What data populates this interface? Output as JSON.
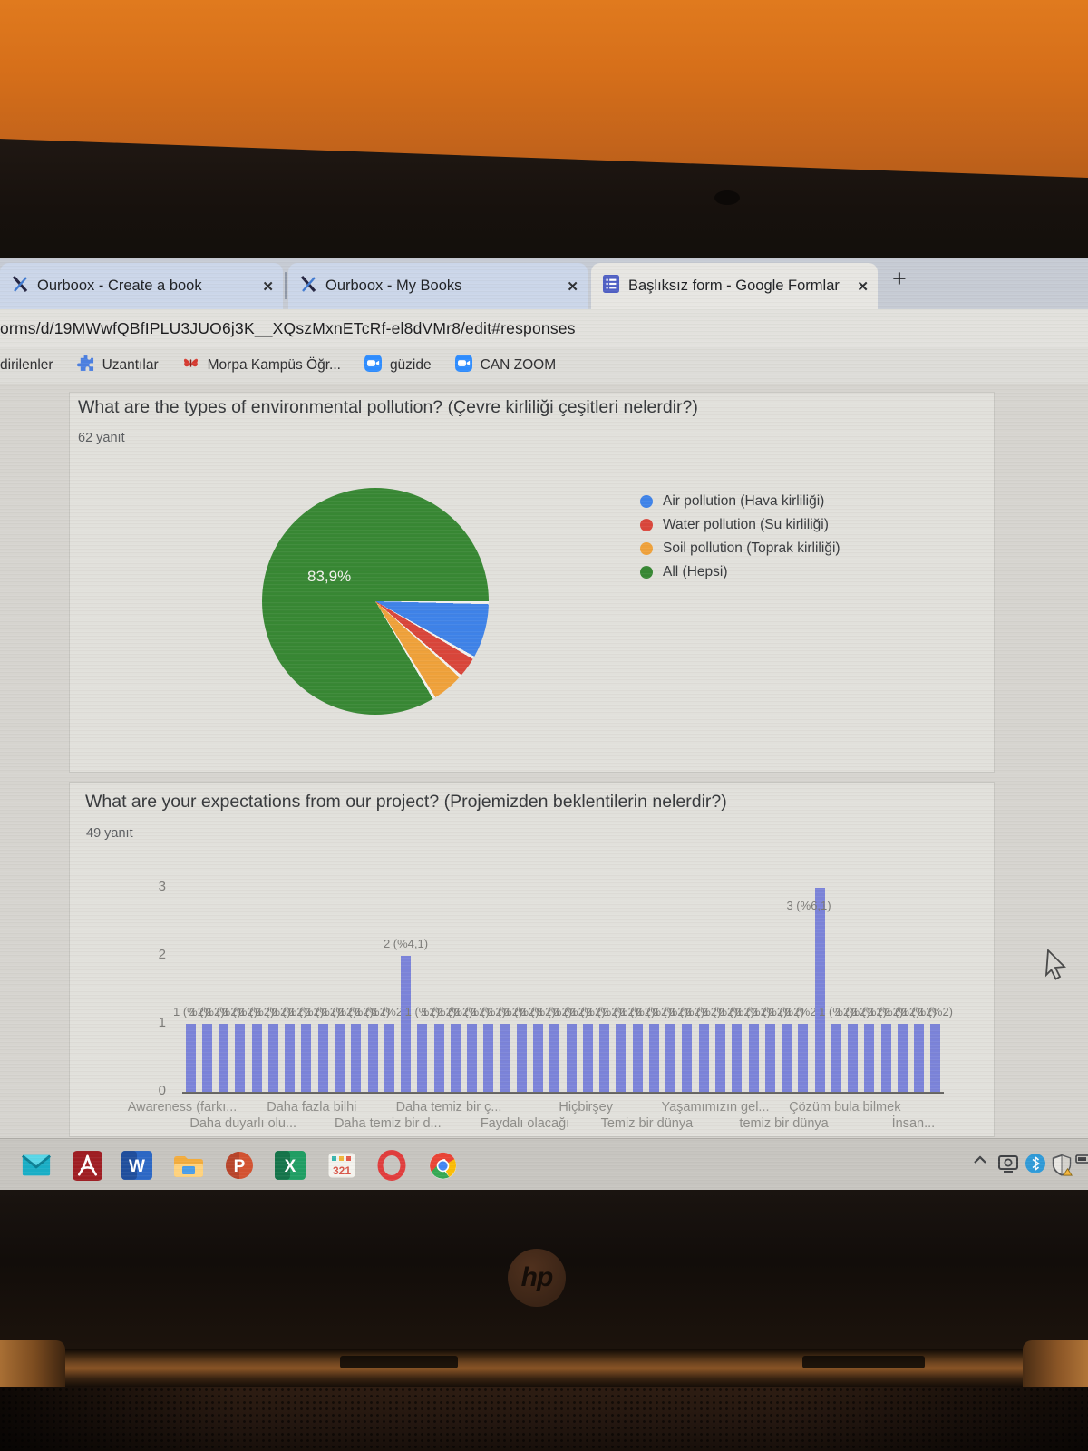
{
  "browser": {
    "close_glyph": "✕",
    "new_tab_label": "+",
    "tabs": [
      {
        "id": "ourboox-create",
        "label": "Ourboox - Create a book",
        "favicon": "ourboox-x",
        "active": false
      },
      {
        "id": "ourboox-books",
        "label": "Ourboox - My Books",
        "favicon": "ourboox-x",
        "active": false
      },
      {
        "id": "google-form",
        "label": "Başlıksız form - Google Formlar",
        "favicon": "google-forms",
        "active": true
      }
    ],
    "url": "orms/d/19MWwfQBfIPLU3JUO6j3K__XQszMxnETcRf-el8dVMr8/edit#responses",
    "bookmarks": [
      {
        "label": "dirilenler",
        "icon": "none"
      },
      {
        "label": "Uzantılar",
        "icon": "puzzle"
      },
      {
        "label": "Morpa Kampüs Öğr...",
        "icon": "butterfly"
      },
      {
        "label": "güzide",
        "icon": "zoom-camera"
      },
      {
        "label": "CAN ZOOM",
        "icon": "zoom-camera"
      }
    ]
  },
  "form": {
    "q1_title": "What are the types of environmental pollution? (Çevre kirliliği çeşitleri nelerdir?)",
    "q1_responses": "62 yanıt",
    "q2_title": "What are your expectations from our project? (Projemizden beklentilerin nelerdir?)",
    "q2_responses": "49 yanıt"
  },
  "chart_data": [
    {
      "type": "pie",
      "title": "What are the types of environmental pollution? (Çevre kirliliği çeşitleri nelerdir?)",
      "responses_label": "62 yanıt",
      "shown_label": "83,9%",
      "start_angle_deg": 90,
      "legend_position": "right",
      "slices": [
        {
          "label": "Air pollution (Hava kirliliği)",
          "color": "#3e82e8",
          "percent": 8.1
        },
        {
          "label": "Water pollution (Su kirliliği)",
          "color": "#d9453a",
          "percent": 3.2
        },
        {
          "label": "Soil pollution (Toprak kirliliği)",
          "color": "#efa13a",
          "percent": 4.8
        },
        {
          "label": "All (Hepsi)",
          "color": "#378733",
          "percent": 83.9
        }
      ]
    },
    {
      "type": "bar",
      "title": "What are your expectations from our project? (Projemizden beklentilerin nelerdir?)",
      "responses_label": "49 yanıt",
      "bar_color": "#7b83d9",
      "ylim": [
        0,
        3
      ],
      "yticks": [
        0,
        1,
        2,
        3
      ],
      "grid": false,
      "values": [
        1,
        1,
        1,
        1,
        1,
        1,
        1,
        1,
        1,
        1,
        1,
        1,
        1,
        2,
        1,
        1,
        1,
        1,
        1,
        1,
        1,
        1,
        1,
        1,
        1,
        1,
        1,
        1,
        1,
        1,
        1,
        1,
        1,
        1,
        1,
        1,
        1,
        1,
        3,
        1,
        1,
        1,
        1,
        1,
        1,
        1
      ],
      "value_label_formats": {
        "1": "1 (%2)",
        "2": "2 (%4,1)",
        "3": "3 (%6,1)"
      },
      "x_tick_labels_row1": [
        "Awareness (farkı...",
        "Daha fazla bilhi",
        "Daha temiz bir ç...",
        "Hiçbirşey",
        "Yaşamımızın gel...",
        "Çözüm bula bilmek"
      ],
      "x_tick_positions_row1_pct": [
        0,
        17,
        35,
        53,
        70,
        87
      ],
      "x_tick_labels_row2": [
        "Daha duyarlı olu...",
        "Daha temiz bir d...",
        "Faydalı olacağı",
        "Temiz bir dünya",
        "temiz bir dünya",
        "İnsan..."
      ],
      "x_tick_positions_row2_pct": [
        8,
        27,
        45,
        61,
        79,
        96
      ]
    }
  ],
  "taskbar": {
    "icons": [
      {
        "name": "mail"
      },
      {
        "name": "acrobat"
      },
      {
        "name": "word",
        "badge": "W"
      },
      {
        "name": "file-explorer"
      },
      {
        "name": "powerpoint",
        "badge": "P"
      },
      {
        "name": "excel",
        "badge": "X"
      },
      {
        "name": "calendar",
        "badge": "321"
      },
      {
        "name": "opera"
      },
      {
        "name": "chrome"
      }
    ],
    "tray": [
      {
        "name": "chevron-up"
      },
      {
        "name": "screen-cast"
      },
      {
        "name": "bluetooth"
      },
      {
        "name": "defender-shield"
      },
      {
        "name": "battery"
      }
    ]
  },
  "laptop": {
    "brand": "hp"
  }
}
